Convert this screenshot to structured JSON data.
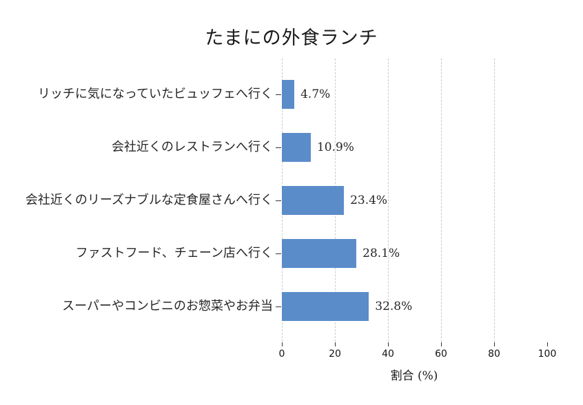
{
  "chart_data": {
    "type": "bar",
    "orientation": "horizontal",
    "title": "たまにの外食ランチ",
    "xlabel": "割合 (%)",
    "categories_top_to_bottom": [
      "リッチに気になっていたビュッフェへ行く",
      "会社近くのレストランへ行く",
      "会社近くのリーズナブルな定食屋さんへ行く",
      "ファストフード、チェーン店へ行く",
      "スーパーやコンビニのお惣菜やお弁当"
    ],
    "values": [
      4.7,
      10.9,
      23.4,
      28.1,
      32.8
    ],
    "value_labels": [
      "4.7%",
      "10.9%",
      "23.4%",
      "28.1%",
      "32.8%"
    ],
    "xlim": [
      0,
      100
    ],
    "xticks": [
      0,
      20,
      40,
      60,
      80,
      100
    ],
    "gridlines": [
      0,
      20,
      40,
      60,
      80
    ],
    "grid_style": "dashed-vertical",
    "bar_color": "#5b8cca",
    "legend": "none",
    "background_color": "#ffffff"
  }
}
